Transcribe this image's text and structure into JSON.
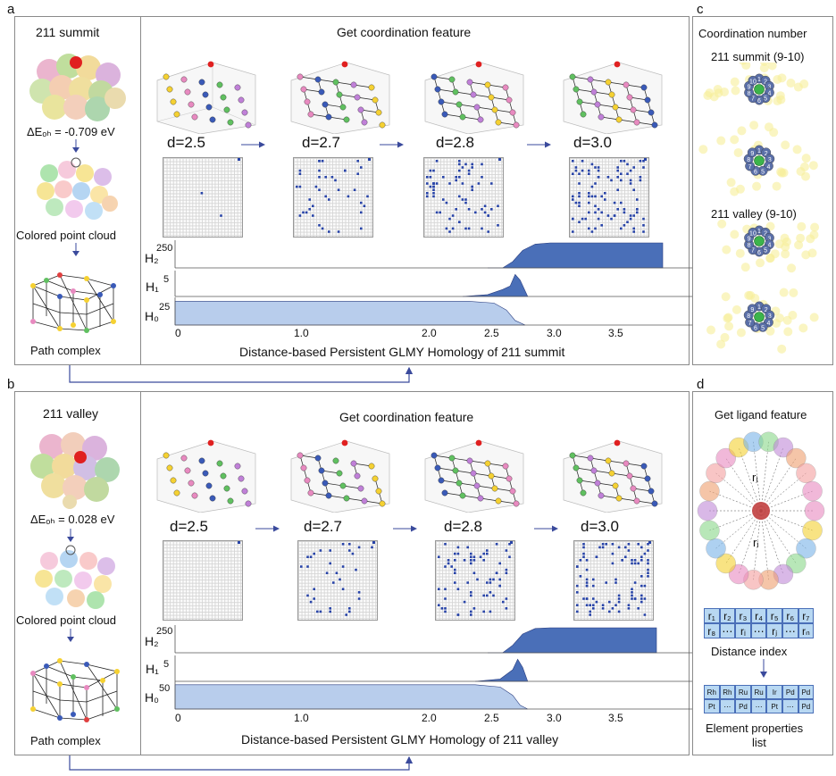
{
  "panel_letters": {
    "a": "a",
    "b": "b",
    "c": "c",
    "d": "d"
  },
  "panel_a": {
    "site_title": "211 summit",
    "energy": "ΔEₒₕ = -0.709 eV",
    "point_cloud_label": "Colored point cloud",
    "path_complex_label": "Path complex",
    "header": "Get coordination feature",
    "d_labels": [
      "d=2.5",
      "d=2.7",
      "d=2.8",
      "d=3.0"
    ],
    "h_labels": {
      "h2": "H₂",
      "h1": "H₁",
      "h0": "H₀"
    },
    "h_max": {
      "h2": "250",
      "h1": "5",
      "h0": "25"
    },
    "axis_ticks": [
      "0",
      "1.0",
      "2.0",
      "2.5",
      "3.0",
      "3.5"
    ],
    "axis_title": "Distance-based Persistent GLMY Homology of 211 summit",
    "profiles": {
      "h2": [
        [
          2.5,
          0
        ],
        [
          2.62,
          0
        ],
        [
          2.7,
          0.25
        ],
        [
          2.78,
          0.7
        ],
        [
          2.88,
          0.95
        ],
        [
          3.0,
          1
        ],
        [
          3.9,
          1
        ],
        [
          3.9,
          0
        ]
      ],
      "h1": [
        [
          2.3,
          0
        ],
        [
          2.5,
          0.08
        ],
        [
          2.62,
          0.3
        ],
        [
          2.68,
          0.45
        ],
        [
          2.72,
          0.95
        ],
        [
          2.76,
          0.7
        ],
        [
          2.82,
          0
        ]
      ],
      "h0": [
        [
          0,
          0.95
        ],
        [
          2.35,
          0.95
        ],
        [
          2.55,
          0.88
        ],
        [
          2.65,
          0.6
        ],
        [
          2.72,
          0.18
        ],
        [
          2.8,
          0
        ]
      ]
    }
  },
  "panel_b": {
    "site_title": "211 valley",
    "energy": "ΔEₒₕ = 0.028 eV",
    "point_cloud_label": "Colored point cloud",
    "path_complex_label": "Path complex",
    "header": "Get coordination feature",
    "d_labels": [
      "d=2.5",
      "d=2.7",
      "d=2.8",
      "d=3.0"
    ],
    "h_labels": {
      "h2": "H₂",
      "h1": "H₁",
      "h0": "H₀"
    },
    "h_max": {
      "h2": "250",
      "h1": "5",
      "h0": "50"
    },
    "axis_ticks": [
      "0",
      "1.0",
      "2.0",
      "2.5",
      "3.0",
      "3.5"
    ],
    "axis_title": "Distance-based Persistent GLMY Homology of 211 valley",
    "profiles": {
      "h2": [
        [
          2.5,
          0
        ],
        [
          2.62,
          0
        ],
        [
          2.7,
          0.3
        ],
        [
          2.78,
          0.75
        ],
        [
          2.88,
          0.97
        ],
        [
          3.0,
          1
        ],
        [
          3.85,
          1
        ],
        [
          3.85,
          0
        ]
      ],
      "h1": [
        [
          2.4,
          0
        ],
        [
          2.6,
          0.1
        ],
        [
          2.7,
          0.5
        ],
        [
          2.74,
          0.95
        ],
        [
          2.78,
          0.6
        ],
        [
          2.82,
          0
        ]
      ],
      "h0": [
        [
          0,
          0.97
        ],
        [
          2.4,
          0.97
        ],
        [
          2.6,
          0.88
        ],
        [
          2.7,
          0.55
        ],
        [
          2.76,
          0.15
        ],
        [
          2.82,
          0
        ]
      ]
    }
  },
  "panel_c": {
    "title": "Coordination number",
    "summit_label": "211 summit (9-10)",
    "valley_label": "211 valley (9-10)",
    "cluster_numbers": [
      "1",
      "2",
      "3",
      "4",
      "5",
      "6",
      "7",
      "8",
      "9",
      "10"
    ]
  },
  "panel_d": {
    "title": "Get ligand feature",
    "ligand_labels": {
      "rj": "rⱼ",
      "ri": "rᵢ"
    },
    "distance_row1": [
      "r₁",
      "r₂",
      "r₃",
      "r₄",
      "r₅",
      "r₆",
      "r₇"
    ],
    "distance_row2": [
      "r₈",
      "⋯",
      "rᵢ",
      "⋯",
      "rⱼ",
      "⋯",
      "rₙ"
    ],
    "distance_label": "Distance index",
    "element_row1": [
      "Rh",
      "Rh",
      "Ru",
      "Ru",
      "Ir",
      "Pd",
      "Pd"
    ],
    "element_row2": [
      "Pt",
      "⋯",
      "Pd",
      "⋯",
      "Pt",
      "⋯",
      "Pd"
    ],
    "element_label_1": "Element properties",
    "element_label_2": "list"
  },
  "colors": {
    "blue_fill": "#4a6fb8",
    "light_fill": "#b8cdec",
    "arrow": "#3a4a9c",
    "grid_dot": "#2844a8"
  }
}
